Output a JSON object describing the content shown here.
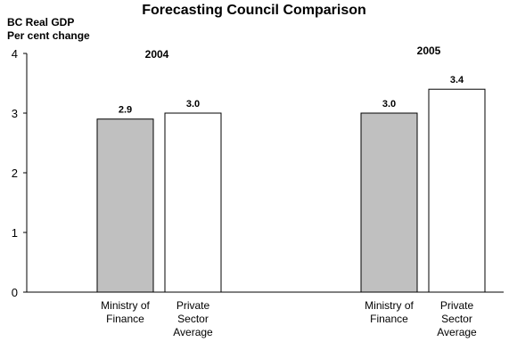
{
  "chart_data": {
    "type": "bar",
    "title": "Forecasting Council Comparison",
    "ylabel_line1": "BC Real GDP",
    "ylabel_line2": "Per cent change",
    "ylim": [
      0,
      4
    ],
    "yticks": [
      "0",
      "1",
      "2",
      "3",
      "4"
    ],
    "grid": false,
    "groups": [
      {
        "label": "2004",
        "bars": [
          {
            "category": [
              "Ministry of",
              "Finance"
            ],
            "value": 2.9,
            "value_label": "2.9",
            "fill": "#c0c0c0"
          },
          {
            "category": [
              "Private",
              "Sector",
              "Average"
            ],
            "value": 3.0,
            "value_label": "3.0",
            "fill": "#ffffff"
          }
        ]
      },
      {
        "label": "2005",
        "bars": [
          {
            "category": [
              "Ministry of",
              "Finance"
            ],
            "value": 3.0,
            "value_label": "3.0",
            "fill": "#c0c0c0"
          },
          {
            "category": [
              "Private",
              "Sector",
              "Average"
            ],
            "value": 3.4,
            "value_label": "3.4",
            "fill": "#ffffff"
          }
        ]
      }
    ]
  }
}
